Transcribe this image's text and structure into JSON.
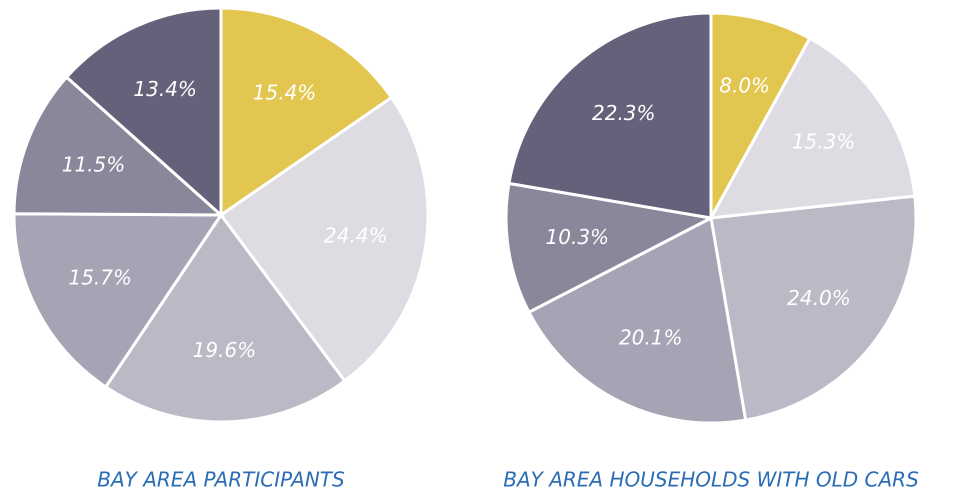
{
  "chart_data": [
    {
      "type": "pie",
      "title": "BAY AREA PARTICIPANTS",
      "values": [
        15.4,
        24.4,
        19.6,
        15.7,
        11.5,
        13.4
      ],
      "value_labels": [
        "15.4%",
        "24.4%",
        "19.6%",
        "15.7%",
        "11.5%",
        "13.4%"
      ],
      "colors": [
        "#e2c650",
        "#dedbe2",
        "#bdb8c6",
        "#a8a3b4",
        "#8b879b",
        "#63627a"
      ]
    },
    {
      "type": "pie",
      "title": "BAY AREA HOUSEHOLDS WITH OLD CARS",
      "values": [
        8.0,
        15.3,
        24.0,
        20.1,
        10.3,
        22.3
      ],
      "value_labels": [
        "8.0%",
        "15.3%",
        "24.0%",
        "20.1%",
        "10.3%",
        "22.3%"
      ],
      "colors": [
        "#e2c650",
        "#dedbe2",
        "#bdb8c6",
        "#a8a3b4",
        "#8b879b",
        "#63627a"
      ]
    }
  ]
}
